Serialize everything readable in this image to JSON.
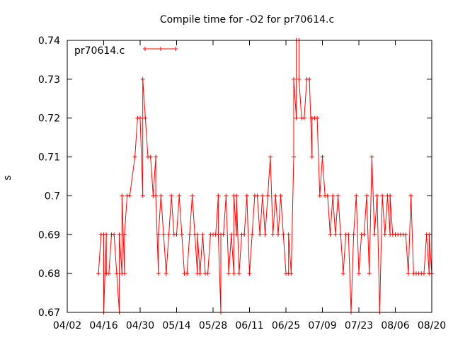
{
  "chart_data": {
    "type": "line",
    "title": "Compile time for -O2 for pr70614.c",
    "xlabel": "",
    "ylabel": "s",
    "xlim": [
      "2016-04-02",
      "2016-08-20"
    ],
    "ylim": [
      0.67,
      0.74
    ],
    "x_ticks": [
      "04/02",
      "04/16",
      "04/30",
      "05/14",
      "05/28",
      "06/11",
      "06/25",
      "07/09",
      "07/23",
      "08/06",
      "08/20"
    ],
    "y_ticks": [
      "0.67",
      "0.68",
      "0.69",
      "0.7",
      "0.71",
      "0.72",
      "0.73",
      "0.74"
    ],
    "grid": false,
    "legend_position": "top-left",
    "series": [
      {
        "name": "pr70614.c",
        "color": "#ff0000",
        "marker": "plus",
        "points": [
          [
            "2016-04-14",
            0.68
          ],
          [
            "2016-04-15",
            0.69
          ],
          [
            "2016-04-16",
            0.69
          ],
          [
            "2016-04-16",
            0.67
          ],
          [
            "2016-04-17",
            0.69
          ],
          [
            "2016-04-17",
            0.68
          ],
          [
            "2016-04-18",
            0.68
          ],
          [
            "2016-04-19",
            0.69
          ],
          [
            "2016-04-20",
            0.69
          ],
          [
            "2016-04-21",
            0.68
          ],
          [
            "2016-04-22",
            0.67
          ],
          [
            "2016-04-22",
            0.69
          ],
          [
            "2016-04-23",
            0.68
          ],
          [
            "2016-04-23",
            0.7
          ],
          [
            "2016-04-24",
            0.68
          ],
          [
            "2016-04-24",
            0.69
          ],
          [
            "2016-04-25",
            0.7
          ],
          [
            "2016-04-26",
            0.7
          ],
          [
            "2016-04-28",
            0.71
          ],
          [
            "2016-04-29",
            0.72
          ],
          [
            "2016-04-30",
            0.72
          ],
          [
            "2016-05-01",
            0.7
          ],
          [
            "2016-05-01",
            0.73
          ],
          [
            "2016-05-02",
            0.72
          ],
          [
            "2016-05-03",
            0.71
          ],
          [
            "2016-05-04",
            0.71
          ],
          [
            "2016-05-05",
            0.7
          ],
          [
            "2016-05-06",
            0.71
          ],
          [
            "2016-05-06",
            0.7
          ],
          [
            "2016-05-07",
            0.68
          ],
          [
            "2016-05-07",
            0.69
          ],
          [
            "2016-05-08",
            0.7
          ],
          [
            "2016-05-09",
            0.69
          ],
          [
            "2016-05-10",
            0.68
          ],
          [
            "2016-05-11",
            0.69
          ],
          [
            "2016-05-12",
            0.7
          ],
          [
            "2016-05-13",
            0.69
          ],
          [
            "2016-05-14",
            0.69
          ],
          [
            "2016-05-15",
            0.7
          ],
          [
            "2016-05-16",
            0.69
          ],
          [
            "2016-05-17",
            0.68
          ],
          [
            "2016-05-18",
            0.68
          ],
          [
            "2016-05-19",
            0.69
          ],
          [
            "2016-05-20",
            0.7
          ],
          [
            "2016-05-21",
            0.69
          ],
          [
            "2016-05-22",
            0.68
          ],
          [
            "2016-05-22",
            0.69
          ],
          [
            "2016-05-23",
            0.68
          ],
          [
            "2016-05-24",
            0.69
          ],
          [
            "2016-05-25",
            0.68
          ],
          [
            "2016-05-26",
            0.68
          ],
          [
            "2016-05-27",
            0.69
          ],
          [
            "2016-05-28",
            0.69
          ],
          [
            "2016-05-29",
            0.69
          ],
          [
            "2016-05-30",
            0.7
          ],
          [
            "2016-05-30",
            0.69
          ],
          [
            "2016-05-31",
            0.67
          ],
          [
            "2016-05-31",
            0.69
          ],
          [
            "2016-06-01",
            0.69
          ],
          [
            "2016-06-02",
            0.7
          ],
          [
            "2016-06-03",
            0.68
          ],
          [
            "2016-06-04",
            0.69
          ],
          [
            "2016-06-05",
            0.68
          ],
          [
            "2016-06-05",
            0.7
          ],
          [
            "2016-06-06",
            0.69
          ],
          [
            "2016-06-06",
            0.7
          ],
          [
            "2016-06-07",
            0.68
          ],
          [
            "2016-06-08",
            0.69
          ],
          [
            "2016-06-09",
            0.69
          ],
          [
            "2016-06-10",
            0.7
          ],
          [
            "2016-06-11",
            0.68
          ],
          [
            "2016-06-12",
            0.69
          ],
          [
            "2016-06-13",
            0.7
          ],
          [
            "2016-06-14",
            0.7
          ],
          [
            "2016-06-15",
            0.69
          ],
          [
            "2016-06-16",
            0.7
          ],
          [
            "2016-06-17",
            0.69
          ],
          [
            "2016-06-18",
            0.7
          ],
          [
            "2016-06-19",
            0.71
          ],
          [
            "2016-06-20",
            0.69
          ],
          [
            "2016-06-21",
            0.7
          ],
          [
            "2016-06-22",
            0.69
          ],
          [
            "2016-06-23",
            0.7
          ],
          [
            "2016-06-24",
            0.69
          ],
          [
            "2016-06-25",
            0.68
          ],
          [
            "2016-06-26",
            0.68
          ],
          [
            "2016-06-26",
            0.69
          ],
          [
            "2016-06-27",
            0.68
          ],
          [
            "2016-06-28",
            0.71
          ],
          [
            "2016-06-28",
            0.73
          ],
          [
            "2016-06-29",
            0.72
          ],
          [
            "2016-06-29",
            0.74
          ],
          [
            "2016-06-30",
            0.74
          ],
          [
            "2016-06-30",
            0.73
          ],
          [
            "2016-07-01",
            0.72
          ],
          [
            "2016-07-02",
            0.72
          ],
          [
            "2016-07-03",
            0.73
          ],
          [
            "2016-07-04",
            0.73
          ],
          [
            "2016-07-05",
            0.71
          ],
          [
            "2016-07-05",
            0.72
          ],
          [
            "2016-07-06",
            0.72
          ],
          [
            "2016-07-07",
            0.72
          ],
          [
            "2016-07-08",
            0.7
          ],
          [
            "2016-07-09",
            0.71
          ],
          [
            "2016-07-10",
            0.7
          ],
          [
            "2016-07-11",
            0.7
          ],
          [
            "2016-07-12",
            0.69
          ],
          [
            "2016-07-13",
            0.7
          ],
          [
            "2016-07-14",
            0.69
          ],
          [
            "2016-07-15",
            0.7
          ],
          [
            "2016-07-16",
            0.69
          ],
          [
            "2016-07-17",
            0.68
          ],
          [
            "2016-07-18",
            0.69
          ],
          [
            "2016-07-19",
            0.69
          ],
          [
            "2016-07-20",
            0.67
          ],
          [
            "2016-07-21",
            0.69
          ],
          [
            "2016-07-22",
            0.7
          ],
          [
            "2016-07-23",
            0.68
          ],
          [
            "2016-07-24",
            0.69
          ],
          [
            "2016-07-25",
            0.69
          ],
          [
            "2016-07-26",
            0.7
          ],
          [
            "2016-07-27",
            0.68
          ],
          [
            "2016-07-28",
            0.71
          ],
          [
            "2016-07-29",
            0.69
          ],
          [
            "2016-07-30",
            0.7
          ],
          [
            "2016-07-31",
            0.67
          ],
          [
            "2016-08-01",
            0.7
          ],
          [
            "2016-08-02",
            0.69
          ],
          [
            "2016-08-03",
            0.7
          ],
          [
            "2016-08-04",
            0.69
          ],
          [
            "2016-08-04",
            0.7
          ],
          [
            "2016-08-05",
            0.69
          ],
          [
            "2016-08-06",
            0.69
          ],
          [
            "2016-08-07",
            0.69
          ],
          [
            "2016-08-08",
            0.69
          ],
          [
            "2016-08-09",
            0.69
          ],
          [
            "2016-08-10",
            0.69
          ],
          [
            "2016-08-11",
            0.68
          ],
          [
            "2016-08-12",
            0.7
          ],
          [
            "2016-08-13",
            0.68
          ],
          [
            "2016-08-14",
            0.68
          ],
          [
            "2016-08-15",
            0.68
          ],
          [
            "2016-08-16",
            0.68
          ],
          [
            "2016-08-17",
            0.68
          ],
          [
            "2016-08-18",
            0.69
          ],
          [
            "2016-08-19",
            0.68
          ],
          [
            "2016-08-19",
            0.69
          ],
          [
            "2016-08-20",
            0.68
          ]
        ]
      }
    ]
  }
}
